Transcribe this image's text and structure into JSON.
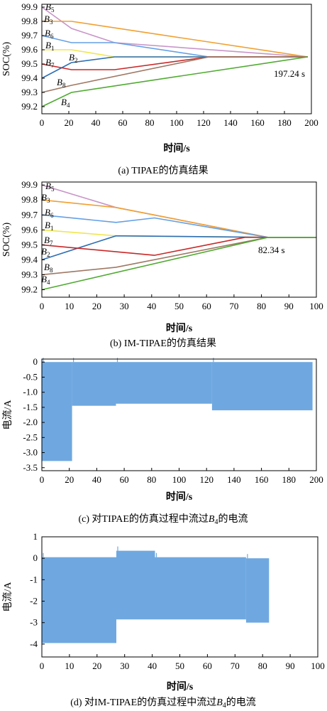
{
  "chart_data": [
    {
      "type": "line",
      "caption": "(a) TIPAE的仿真结果",
      "xlabel": "时间/s",
      "ylabel": "SOC(%)",
      "xlim": [
        0,
        200
      ],
      "ylim": [
        99.15,
        99.92
      ],
      "xticks": [
        0,
        20,
        40,
        60,
        80,
        100,
        120,
        140,
        160,
        180,
        200
      ],
      "yticks": [
        99.2,
        99.3,
        99.4,
        99.5,
        99.6,
        99.7,
        99.8,
        99.9
      ],
      "annotation": "197.24 s",
      "series": [
        {
          "name": "B5",
          "color": "#c896c8",
          "x": [
            0,
            22,
            54,
            197.24
          ],
          "y": [
            99.9,
            99.75,
            99.65,
            99.55
          ]
        },
        {
          "name": "B3",
          "color": "#f0a030",
          "x": [
            0,
            22,
            197.24
          ],
          "y": [
            99.8,
            99.8,
            99.55
          ]
        },
        {
          "name": "B6",
          "color": "#64a0e6",
          "x": [
            0,
            22,
            54,
            124,
            197.24
          ],
          "y": [
            99.7,
            99.65,
            99.65,
            99.55,
            99.55
          ]
        },
        {
          "name": "B1",
          "color": "#f0e650",
          "x": [
            0,
            22,
            54,
            124,
            197.24
          ],
          "y": [
            99.6,
            99.6,
            99.55,
            99.55,
            99.55
          ]
        },
        {
          "name": "B2",
          "color": "#2d6eb4",
          "x": [
            0,
            22,
            54,
            124,
            197.24
          ],
          "y": [
            99.4,
            99.51,
            99.55,
            99.55,
            99.55
          ]
        },
        {
          "name": "B7",
          "color": "#c82828",
          "x": [
            0,
            22,
            54,
            124,
            197.24
          ],
          "y": [
            99.5,
            99.46,
            99.46,
            99.55,
            99.55
          ]
        },
        {
          "name": "B8",
          "color": "#a07864",
          "x": [
            0,
            22,
            124,
            197.24
          ],
          "y": [
            99.3,
            99.35,
            99.55,
            99.55
          ]
        },
        {
          "name": "B4",
          "color": "#50aa32",
          "x": [
            0,
            22,
            197.24
          ],
          "y": [
            99.2,
            99.3,
            99.55
          ]
        }
      ]
    },
    {
      "type": "line",
      "caption": "(b) IM-TIPAE的仿真结果",
      "xlabel": "时间/s",
      "ylabel": "SOC(%)",
      "xlim": [
        0,
        100
      ],
      "ylim": [
        99.15,
        99.92
      ],
      "xticks": [
        0,
        10,
        20,
        30,
        40,
        50,
        60,
        70,
        80,
        90,
        100
      ],
      "yticks": [
        99.2,
        99.3,
        99.4,
        99.5,
        99.6,
        99.7,
        99.8,
        99.9
      ],
      "annotation": "82.34 s",
      "series": [
        {
          "name": "B5",
          "color": "#c896c8",
          "x": [
            0,
            27,
            82.34,
            100
          ],
          "y": [
            99.9,
            99.75,
            99.55,
            99.55
          ]
        },
        {
          "name": "B3",
          "color": "#f0a030",
          "x": [
            0,
            27,
            82.34,
            100
          ],
          "y": [
            99.8,
            99.75,
            99.55,
            99.55
          ]
        },
        {
          "name": "B6",
          "color": "#64a0e6",
          "x": [
            0,
            27,
            41,
            82.34,
            100
          ],
          "y": [
            99.7,
            99.65,
            99.68,
            99.55,
            99.55
          ]
        },
        {
          "name": "B1",
          "color": "#f0e650",
          "x": [
            0,
            27,
            82.34,
            100
          ],
          "y": [
            99.6,
            99.56,
            99.55,
            99.55
          ]
        },
        {
          "name": "B2",
          "color": "#2d6eb4",
          "x": [
            0,
            27,
            82.34,
            100
          ],
          "y": [
            99.4,
            99.56,
            99.55,
            99.55
          ]
        },
        {
          "name": "B7",
          "color": "#c82828",
          "x": [
            0,
            41,
            74,
            82.34,
            100
          ],
          "y": [
            99.5,
            99.43,
            99.55,
            99.55,
            99.55
          ]
        },
        {
          "name": "B8",
          "color": "#a07864",
          "x": [
            0,
            27,
            82.34,
            100
          ],
          "y": [
            99.3,
            99.35,
            99.55,
            99.55
          ]
        },
        {
          "name": "B4",
          "color": "#50aa32",
          "x": [
            0,
            82.34,
            100
          ],
          "y": [
            99.2,
            99.55,
            99.55
          ]
        }
      ]
    },
    {
      "type": "area",
      "caption": "(c) 对TIPAE的仿真过程中流过B4的电流",
      "xlabel": "时间/s",
      "ylabel": "电流/A",
      "xlim": [
        0,
        200
      ],
      "ylim": [
        -3.6,
        0.1
      ],
      "xticks": [
        0,
        20,
        40,
        60,
        80,
        100,
        120,
        140,
        160,
        180,
        200
      ],
      "yticks": [
        0,
        -0.5,
        -1.0,
        -1.5,
        -2.0,
        -2.5,
        -3.0,
        -3.5
      ],
      "color": "#6fa8e0",
      "segments": [
        {
          "x0": 0,
          "x1": 22,
          "top": 0.0,
          "bottom": -3.28
        },
        {
          "x0": 22,
          "x1": 54,
          "top": 0.0,
          "bottom": -1.45
        },
        {
          "x0": 54,
          "x1": 124,
          "top": 0.0,
          "bottom": -1.38
        },
        {
          "x0": 124,
          "x1": 197.24,
          "top": 0.0,
          "bottom": -1.6
        }
      ]
    },
    {
      "type": "area",
      "caption": "(d) 对IM-TIPAE的仿真过程中流过B4的电流",
      "xlabel": "时间/s",
      "ylabel": "电流/A",
      "xlim": [
        0,
        100
      ],
      "ylim": [
        -4.6,
        1.0
      ],
      "xticks": [
        0,
        10,
        20,
        30,
        40,
        50,
        60,
        70,
        80,
        90,
        100
      ],
      "yticks": [
        1,
        0,
        -1,
        -2,
        -3,
        -4
      ],
      "color": "#6fa8e0",
      "segments": [
        {
          "x0": 0,
          "x1": 27,
          "top": 0.05,
          "bottom": -3.95
        },
        {
          "x0": 27,
          "x1": 41,
          "top": 0.35,
          "bottom": -2.85
        },
        {
          "x0": 41,
          "x1": 74,
          "top": 0.05,
          "bottom": -2.85
        },
        {
          "x0": 74,
          "x1": 82.34,
          "top": 0.0,
          "bottom": -3.0
        }
      ]
    }
  ]
}
